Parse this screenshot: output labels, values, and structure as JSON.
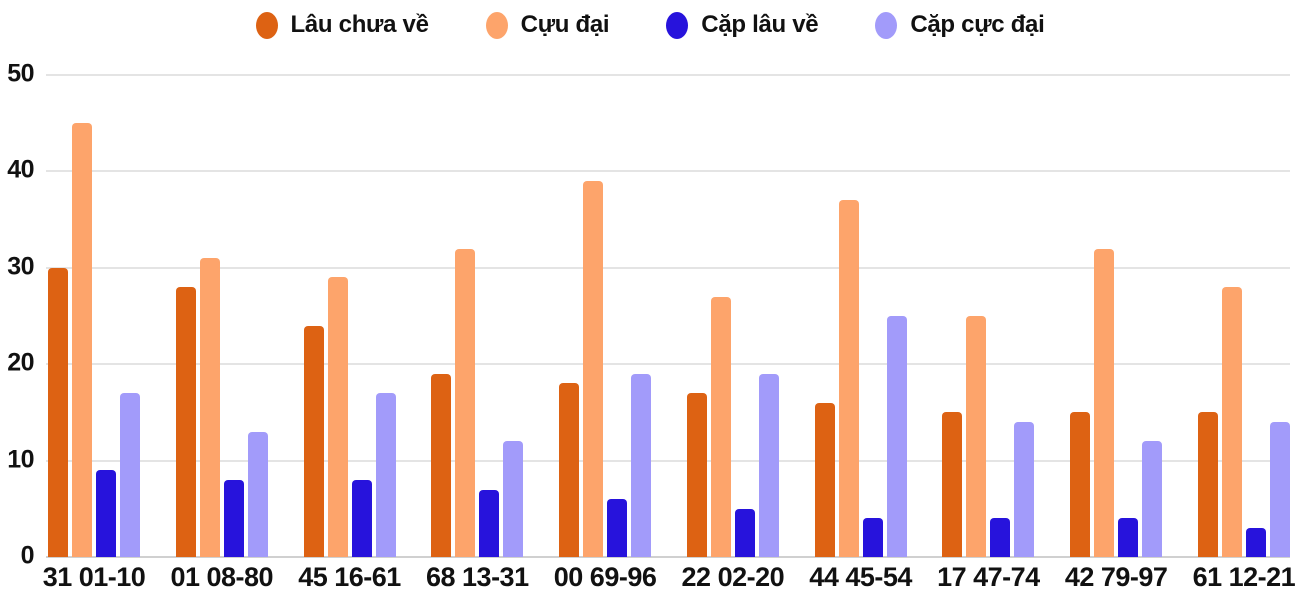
{
  "chart_data": {
    "type": "bar",
    "title": "",
    "xlabel": "",
    "ylabel": "",
    "categories": [
      "31 01-10",
      "01 08-80",
      "45 16-61",
      "68 13-31",
      "00 69-96",
      "22 02-20",
      "44 45-54",
      "17 47-74",
      "42 79-97",
      "61 12-21"
    ],
    "series": [
      {
        "name": "Lâu chưa về",
        "color": "#dd6213",
        "values": [
          30,
          28,
          24,
          19,
          18,
          17,
          16,
          15,
          15,
          15
        ]
      },
      {
        "name": "Cựu đại",
        "color": "#fda46b",
        "values": [
          45,
          31,
          29,
          32,
          39,
          27,
          37,
          25,
          32,
          28
        ]
      },
      {
        "name": "Cặp lâu về",
        "color": "#2713dc",
        "values": [
          9,
          8,
          8,
          7,
          6,
          5,
          4,
          4,
          4,
          3
        ]
      },
      {
        "name": "Cặp cực đại",
        "color": "#a29bfa",
        "values": [
          17,
          13,
          17,
          12,
          19,
          19,
          25,
          14,
          12,
          14
        ]
      }
    ],
    "ylim": [
      0,
      50
    ],
    "yticks": [
      0,
      10,
      20,
      30,
      40,
      50
    ],
    "grid": true,
    "legend_position": "top",
    "colors": {
      "gridline": "#e4e4e4",
      "baseline": "#d0d0d0",
      "tick_text": "#111111",
      "background": "#ffffff"
    }
  }
}
